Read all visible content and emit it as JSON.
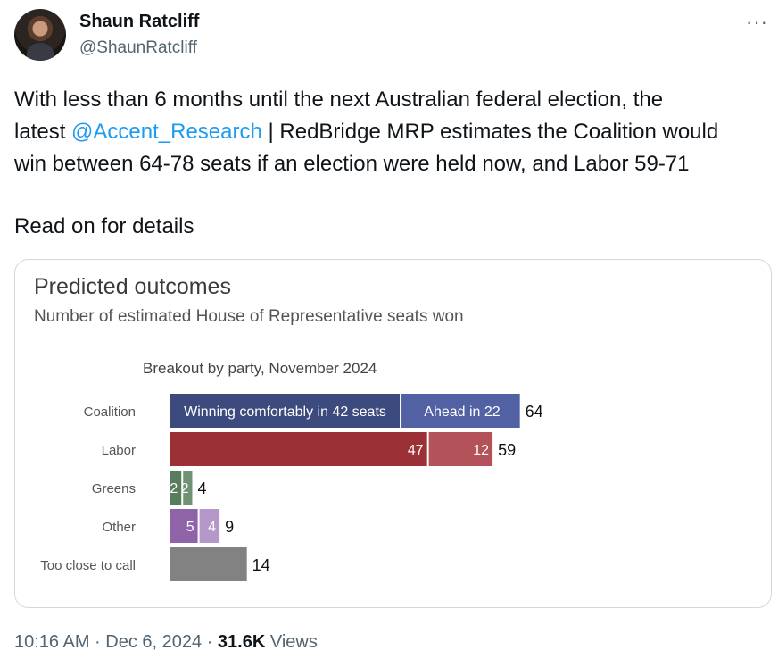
{
  "author": {
    "name": "Shaun Ratcliff",
    "handle": "@ShaunRatcliff"
  },
  "more_label": "···",
  "tweet": {
    "line1": "With less than 6 months until the next Australian federal election, the",
    "line2_prefix": "latest ",
    "mention": "@Accent_Research",
    "line2_suffix": " | RedBridge MRP estimates the Coalition would",
    "line3": "win between 64-78 seats if an election were held now, and Labor 59-71",
    "read_on": "Read on for details"
  },
  "card": {
    "title": "Predicted outcomes",
    "subtitle": "Number of estimated House of Representative seats won",
    "caption": "Breakout by party, November 2024"
  },
  "chart_data": {
    "type": "bar",
    "orientation": "horizontal",
    "stacked": true,
    "categories": [
      "Coalition",
      "Labor",
      "Greens",
      "Other",
      "Too close to call"
    ],
    "series": [
      {
        "values": [
          42,
          47,
          2,
          5,
          14
        ],
        "labels": [
          "Winning comfortably in 42 seats",
          "47",
          "2",
          "5",
          ""
        ]
      },
      {
        "values": [
          22,
          12,
          2,
          4,
          0
        ],
        "labels": [
          "Ahead in 22",
          "12",
          "2",
          "4",
          ""
        ]
      }
    ],
    "totals": [
      64,
      59,
      4,
      9,
      14
    ],
    "colors": {
      "Coalition": [
        "#3d4a7d",
        "#5161a4"
      ],
      "Labor": [
        "#9b3036",
        "#b35259"
      ],
      "Greens": [
        "#587c5c",
        "#6f9372"
      ],
      "Other": [
        "#8e63a8",
        "#b597c9"
      ],
      "Too close to call": [
        "#828282",
        "#828282"
      ]
    }
  },
  "footer": {
    "time": "10:16 AM · Dec 6, 2024 · ",
    "views_count": "31.6K",
    "views_label": " Views"
  }
}
